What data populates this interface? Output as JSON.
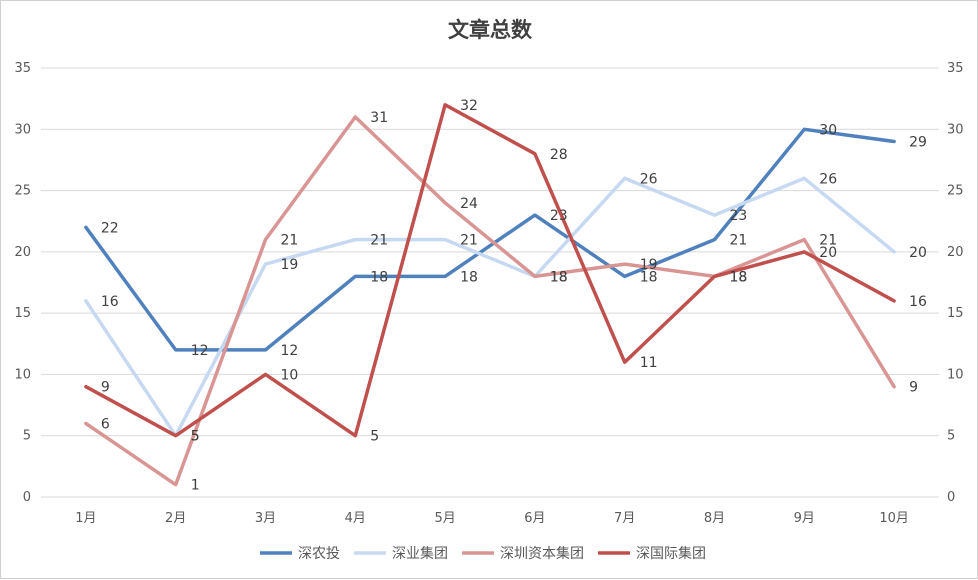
{
  "chart_data": {
    "type": "line",
    "title": "文章总数",
    "categories": [
      "1月",
      "2月",
      "3月",
      "4月",
      "5月",
      "6月",
      "7月",
      "8月",
      "9月",
      "10月"
    ],
    "ylim": [
      0,
      35
    ],
    "yticks": [
      0,
      5,
      10,
      15,
      20,
      25,
      30,
      35
    ],
    "y_axes": [
      "left",
      "right"
    ],
    "grid": true,
    "legend": "bottom",
    "series": [
      {
        "name": "深农投",
        "color": "#4f81bd",
        "values": [
          22,
          12,
          12,
          18,
          18,
          23,
          18,
          21,
          30,
          29
        ]
      },
      {
        "name": "深业集团",
        "color": "#c6d9f1",
        "values": [
          16,
          5,
          19,
          21,
          21,
          18,
          26,
          23,
          26,
          20
        ]
      },
      {
        "name": "深圳资本集团",
        "color": "#d99594",
        "values": [
          6,
          1,
          21,
          31,
          24,
          18,
          19,
          18,
          21,
          9
        ]
      },
      {
        "name": "深国际集团",
        "color": "#c0504d",
        "values": [
          9,
          5,
          10,
          5,
          32,
          28,
          11,
          18,
          20,
          16
        ]
      }
    ]
  }
}
